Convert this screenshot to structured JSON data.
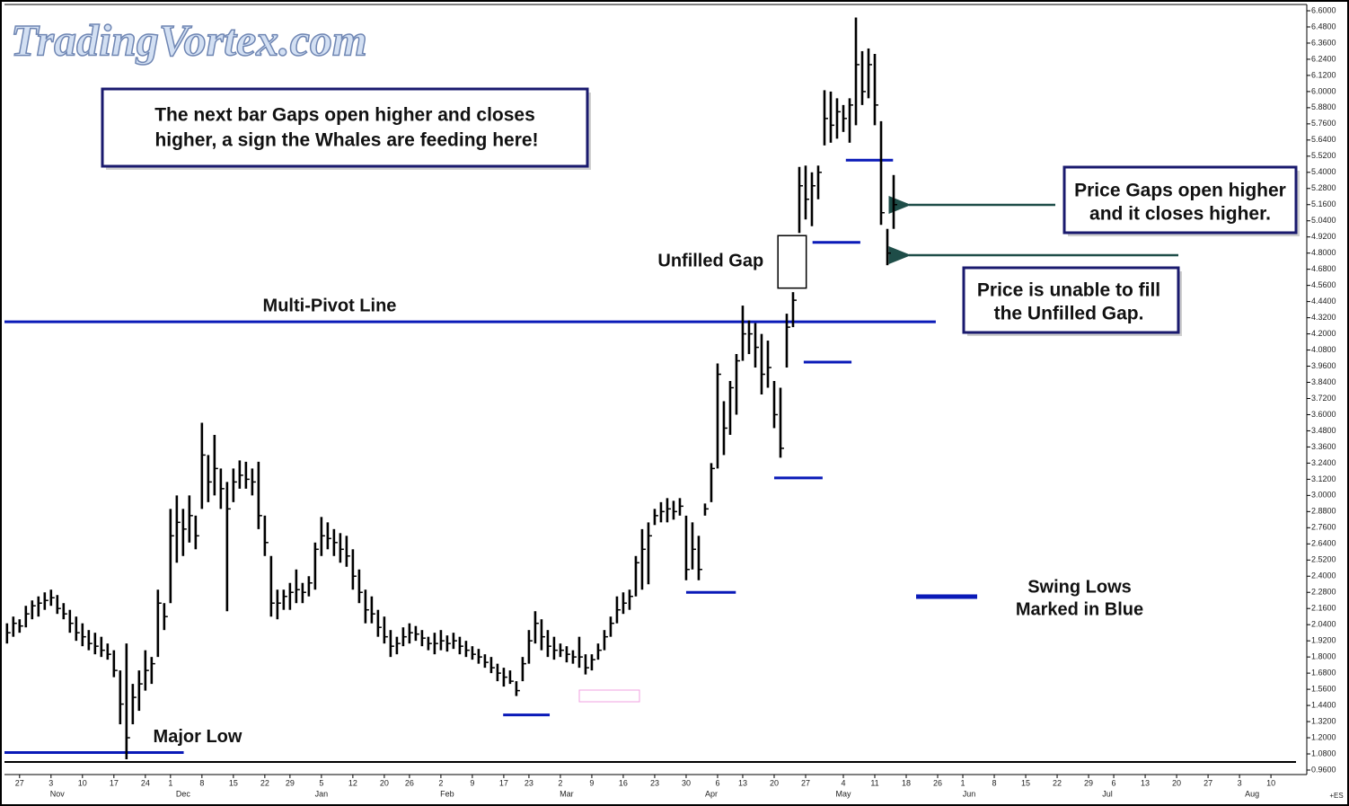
{
  "chart_data": {
    "type": "ohlc",
    "logo": "TradingVortex.com",
    "x": [
      -2,
      -1,
      0,
      1,
      2,
      3,
      4,
      5,
      6,
      7,
      8,
      9,
      10,
      11,
      12,
      13,
      14,
      15,
      16,
      17,
      18,
      19,
      20,
      21,
      22,
      23,
      24,
      25,
      26,
      27,
      28,
      29,
      30,
      31,
      32,
      33,
      34,
      35,
      36,
      37,
      38,
      39,
      40,
      41,
      42,
      43,
      44,
      45,
      46,
      47,
      48,
      49,
      50,
      51,
      52,
      53,
      54,
      55,
      56,
      57,
      58,
      59,
      60,
      61,
      62,
      63,
      64,
      65,
      66,
      67,
      68,
      69,
      70,
      71,
      72,
      73,
      74,
      75,
      76,
      77,
      78,
      79,
      80,
      81,
      82,
      83,
      84,
      85,
      86,
      87,
      88,
      89,
      90,
      91,
      92,
      93,
      94,
      95,
      96,
      97,
      98,
      99,
      100,
      101,
      102,
      103,
      104,
      105,
      106,
      107,
      108,
      109,
      110,
      111,
      112,
      113,
      114,
      115,
      116,
      117,
      118,
      119,
      120,
      121,
      122,
      123,
      124,
      125,
      126,
      127,
      128,
      129,
      130,
      131,
      132,
      133,
      134,
      135,
      136,
      137,
      138,
      139
    ],
    "high": [
      2.05,
      2.1,
      2.08,
      2.18,
      2.22,
      2.25,
      2.28,
      2.3,
      2.26,
      2.2,
      2.15,
      2.1,
      2.05,
      2.0,
      1.98,
      1.95,
      1.9,
      1.85,
      1.7,
      1.9,
      1.6,
      1.7,
      1.85,
      1.8,
      2.3,
      2.2,
      2.9,
      3.0,
      2.9,
      3.0,
      2.85,
      3.54,
      3.3,
      3.45,
      3.2,
      3.1,
      3.2,
      3.26,
      3.25,
      3.2,
      3.25,
      2.85,
      2.55,
      2.3,
      2.3,
      2.35,
      2.45,
      2.35,
      2.4,
      2.65,
      2.84,
      2.8,
      2.75,
      2.72,
      2.7,
      2.6,
      2.45,
      2.3,
      2.25,
      2.15,
      2.1,
      2.0,
      1.95,
      2.02,
      2.05,
      2.03,
      2.0,
      1.95,
      1.98,
      2.0,
      1.96,
      1.98,
      1.95,
      1.92,
      1.88,
      1.86,
      1.82,
      1.8,
      1.75,
      1.72,
      1.7,
      1.62,
      1.8,
      2.0,
      2.14,
      2.08,
      2.0,
      1.95,
      1.9,
      1.88,
      1.85,
      1.95,
      1.82,
      1.82,
      1.9,
      2.0,
      2.1,
      2.25,
      2.28,
      2.3,
      2.55,
      2.75,
      2.8,
      2.9,
      2.95,
      2.98,
      2.96,
      2.98,
      2.85,
      2.8,
      2.7,
      2.94,
      3.24,
      3.98,
      3.7,
      3.85,
      4.05,
      4.41,
      4.3,
      4.28,
      4.2,
      4.15,
      3.85,
      3.8,
      4.35,
      4.51,
      5.44,
      5.45,
      5.4,
      5.45,
      6.01,
      6.0,
      5.95,
      5.9,
      5.95,
      6.55,
      6.3,
      6.32,
      6.28,
      5.78,
      4.98,
      5.38
    ],
    "low": [
      1.9,
      1.95,
      1.98,
      2.02,
      2.08,
      2.1,
      2.15,
      2.18,
      2.12,
      2.08,
      1.98,
      1.92,
      1.88,
      1.85,
      1.82,
      1.8,
      1.78,
      1.65,
      1.3,
      1.04,
      1.3,
      1.4,
      1.55,
      1.6,
      1.8,
      2.0,
      2.2,
      2.5,
      2.55,
      2.65,
      2.6,
      2.9,
      2.95,
      3.0,
      2.9,
      2.14,
      2.95,
      3.05,
      3.05,
      3.0,
      2.75,
      2.55,
      2.1,
      2.08,
      2.15,
      2.15,
      2.2,
      2.2,
      2.25,
      2.3,
      2.55,
      2.6,
      2.55,
      2.5,
      2.47,
      2.3,
      2.2,
      2.05,
      2.05,
      1.95,
      1.9,
      1.8,
      1.82,
      1.88,
      1.9,
      1.92,
      1.88,
      1.85,
      1.82,
      1.85,
      1.84,
      1.86,
      1.82,
      1.8,
      1.78,
      1.75,
      1.72,
      1.68,
      1.62,
      1.58,
      1.6,
      1.51,
      1.62,
      1.75,
      1.9,
      1.85,
      1.8,
      1.78,
      1.8,
      1.76,
      1.75,
      1.72,
      1.67,
      1.7,
      1.78,
      1.85,
      1.95,
      2.05,
      2.12,
      2.15,
      2.25,
      2.3,
      2.34,
      2.78,
      2.8,
      2.8,
      2.82,
      2.85,
      2.37,
      2.45,
      2.37,
      2.85,
      2.95,
      3.2,
      3.3,
      3.45,
      3.6,
      4.0,
      4.05,
      3.95,
      3.75,
      3.8,
      3.5,
      3.28,
      3.95,
      4.25,
      4.95,
      5.05,
      5.0,
      5.2,
      5.6,
      5.62,
      5.65,
      5.7,
      5.62,
      5.75,
      5.9,
      5.95,
      5.75,
      5.01,
      4.71,
      4.98
    ],
    "close": [
      1.98,
      2.05,
      2.03,
      2.12,
      2.18,
      2.2,
      2.22,
      2.24,
      2.16,
      2.12,
      2.05,
      1.98,
      1.95,
      1.9,
      1.88,
      1.85,
      1.82,
      1.7,
      1.45,
      1.2,
      1.5,
      1.6,
      1.7,
      1.75,
      2.2,
      2.1,
      2.7,
      2.8,
      2.75,
      2.85,
      2.7,
      3.3,
      3.1,
      3.2,
      3.05,
      2.9,
      3.1,
      3.15,
      3.12,
      3.1,
      2.85,
      2.65,
      2.2,
      2.2,
      2.25,
      2.28,
      2.3,
      2.28,
      2.35,
      2.6,
      2.7,
      2.68,
      2.65,
      2.6,
      2.55,
      2.4,
      2.28,
      2.15,
      2.12,
      2.02,
      1.95,
      1.88,
      1.9,
      1.95,
      1.98,
      1.97,
      1.94,
      1.9,
      1.9,
      1.92,
      1.9,
      1.92,
      1.88,
      1.85,
      1.82,
      1.8,
      1.76,
      1.72,
      1.68,
      1.65,
      1.62,
      1.55,
      1.75,
      1.92,
      2.05,
      1.95,
      1.88,
      1.85,
      1.85,
      1.82,
      1.8,
      1.8,
      1.72,
      1.78,
      1.85,
      1.95,
      2.05,
      2.15,
      2.2,
      2.25,
      2.5,
      2.6,
      2.7,
      2.85,
      2.88,
      2.9,
      2.88,
      2.92,
      2.45,
      2.6,
      2.45,
      2.9,
      3.2,
      3.9,
      3.5,
      3.8,
      4.0,
      4.2,
      4.2,
      4.1,
      3.9,
      3.95,
      3.6,
      3.35,
      4.25,
      4.45,
      5.3,
      5.2,
      5.3,
      5.4,
      5.8,
      5.75,
      5.85,
      5.8,
      5.9,
      6.2,
      6.0,
      6.2,
      5.9,
      5.1,
      4.8,
      5.16
    ],
    "xlim": [
      -2.4,
      204.7
    ],
    "ylim": [
      0.96,
      6.6
    ],
    "yticks": [
      {
        "value": 6.6,
        "label": "6.6000"
      },
      {
        "value": 6.48,
        "label": "6.4800"
      },
      {
        "value": 6.36,
        "label": "6.3600"
      },
      {
        "value": 6.24,
        "label": "6.2400"
      },
      {
        "value": 6.12,
        "label": "6.1200"
      },
      {
        "value": 6.0,
        "label": "6.0000"
      },
      {
        "value": 5.88,
        "label": "5.8800"
      },
      {
        "value": 5.76,
        "label": "5.7600"
      },
      {
        "value": 5.64,
        "label": "5.6400"
      },
      {
        "value": 5.52,
        "label": "5.5200"
      },
      {
        "value": 5.4,
        "label": "5.4000"
      },
      {
        "value": 5.28,
        "label": "5.2800"
      },
      {
        "value": 5.16,
        "label": "5.1600"
      },
      {
        "value": 5.04,
        "label": "5.0400"
      },
      {
        "value": 4.92,
        "label": "4.9200"
      },
      {
        "value": 4.8,
        "label": "4.8000"
      },
      {
        "value": 4.68,
        "label": "4.6800"
      },
      {
        "value": 4.56,
        "label": "4.5600"
      },
      {
        "value": 4.44,
        "label": "4.4400"
      },
      {
        "value": 4.32,
        "label": "4.3200"
      },
      {
        "value": 4.2,
        "label": "4.2000"
      },
      {
        "value": 4.08,
        "label": "4.0800"
      },
      {
        "value": 3.96,
        "label": "3.9600"
      },
      {
        "value": 3.84,
        "label": "3.8400"
      },
      {
        "value": 3.72,
        "label": "3.7200"
      },
      {
        "value": 3.6,
        "label": "3.6000"
      },
      {
        "value": 3.48,
        "label": "3.4800"
      },
      {
        "value": 3.36,
        "label": "3.3600"
      },
      {
        "value": 3.24,
        "label": "3.2400"
      },
      {
        "value": 3.12,
        "label": "3.1200"
      },
      {
        "value": 3.0,
        "label": "3.0000"
      },
      {
        "value": 2.88,
        "label": "2.8800"
      },
      {
        "value": 2.76,
        "label": "2.7600"
      },
      {
        "value": 2.64,
        "label": "2.6400"
      },
      {
        "value": 2.52,
        "label": "2.5200"
      },
      {
        "value": 2.4,
        "label": "2.4000"
      },
      {
        "value": 2.28,
        "label": "2.2800"
      },
      {
        "value": 2.16,
        "label": "2.1600"
      },
      {
        "value": 2.04,
        "label": "2.0400"
      },
      {
        "value": 1.92,
        "label": "1.9200"
      },
      {
        "value": 1.8,
        "label": "1.8000"
      },
      {
        "value": 1.68,
        "label": "1.6800"
      },
      {
        "value": 1.56,
        "label": "1.5600"
      },
      {
        "value": 1.44,
        "label": "1.4400"
      },
      {
        "value": 1.32,
        "label": "1.3200"
      },
      {
        "value": 1.2,
        "label": "1.2000"
      },
      {
        "value": 1.08,
        "label": "1.0800"
      },
      {
        "value": 0.96,
        "label": "0.9600"
      }
    ],
    "xticks": [
      {
        "value": 0,
        "label": "27"
      },
      {
        "value": 5,
        "label": "3"
      },
      {
        "value": 10,
        "label": "10"
      },
      {
        "value": 15,
        "label": "17"
      },
      {
        "value": 20,
        "label": "24"
      },
      {
        "value": 24,
        "label": "1"
      },
      {
        "value": 29,
        "label": "8"
      },
      {
        "value": 34,
        "label": "15"
      },
      {
        "value": 39,
        "label": "22"
      },
      {
        "value": 43,
        "label": "29"
      },
      {
        "value": 48,
        "label": "5"
      },
      {
        "value": 53,
        "label": "12"
      },
      {
        "value": 58,
        "label": "20"
      },
      {
        "value": 62,
        "label": "26"
      },
      {
        "value": 67,
        "label": "2"
      },
      {
        "value": 72,
        "label": "9"
      },
      {
        "value": 77,
        "label": "17"
      },
      {
        "value": 81,
        "label": "23"
      },
      {
        "value": 86,
        "label": "2"
      },
      {
        "value": 91,
        "label": "9"
      },
      {
        "value": 96,
        "label": "16"
      },
      {
        "value": 101,
        "label": "23"
      },
      {
        "value": 106,
        "label": "30"
      },
      {
        "value": 111,
        "label": "6"
      },
      {
        "value": 115,
        "label": "13"
      },
      {
        "value": 120,
        "label": "20"
      },
      {
        "value": 125,
        "label": "27"
      },
      {
        "value": 131,
        "label": "4"
      },
      {
        "value": 136,
        "label": "11"
      },
      {
        "value": 141,
        "label": "18"
      },
      {
        "value": 146,
        "label": "26"
      },
      {
        "value": 150,
        "label": "1"
      },
      {
        "value": 155,
        "label": "8"
      },
      {
        "value": 160,
        "label": "15"
      },
      {
        "value": 165,
        "label": "22"
      },
      {
        "value": 170,
        "label": "29"
      },
      {
        "value": 174,
        "label": "6"
      },
      {
        "value": 179,
        "label": "13"
      },
      {
        "value": 184,
        "label": "20"
      },
      {
        "value": 189,
        "label": "27"
      },
      {
        "value": 194,
        "label": "3"
      },
      {
        "value": 199,
        "label": "10"
      }
    ],
    "month_labels": [
      {
        "value": 6,
        "label": "Nov"
      },
      {
        "value": 26,
        "label": "Dec"
      },
      {
        "value": 48,
        "label": "Jan"
      },
      {
        "value": 68,
        "label": "Feb"
      },
      {
        "value": 87,
        "label": "Mar"
      },
      {
        "value": 110,
        "label": "Apr"
      },
      {
        "value": 131,
        "label": "May"
      },
      {
        "value": 151,
        "label": "Jun"
      },
      {
        "value": 173,
        "label": "Jul"
      },
      {
        "value": 196,
        "label": "Aug"
      }
    ],
    "corner_label": "+ES",
    "pivot_line": {
      "label": "Multi-Pivot Line",
      "value": 4.29,
      "start": -2.4,
      "end": 145.7
    },
    "major_low": {
      "label": "Major Low",
      "value": 1.09,
      "start": -2.4,
      "end": 26.1
    },
    "swing_lows": [
      {
        "value": 1.37,
        "start": 76.9,
        "end": 84.3
      },
      {
        "value": 2.28,
        "start": 106,
        "end": 113.9
      },
      {
        "value": 3.13,
        "start": 120,
        "end": 127.7
      },
      {
        "value": 3.99,
        "start": 124.7,
        "end": 132.3
      },
      {
        "value": 4.88,
        "start": 126.1,
        "end": 133.7
      },
      {
        "value": 5.49,
        "start": 131.4,
        "end": 138.9
      }
    ],
    "gap_box": {
      "label": "Unfilled Gap",
      "top": 4.93,
      "bottom": 4.54,
      "start": 120.6,
      "end": 125.1
    },
    "annotations": {
      "whales": [
        "The next bar Gaps open higher and closes",
        "higher, a sign the Whales are feeding here!"
      ],
      "gaps_higher": [
        "Price Gaps open higher",
        "and it closes higher."
      ],
      "unable_fill": [
        "Price is unable to fill",
        "the Unfilled Gap."
      ],
      "legend": [
        "Swing Lows",
        "Marked in Blue"
      ]
    }
  }
}
